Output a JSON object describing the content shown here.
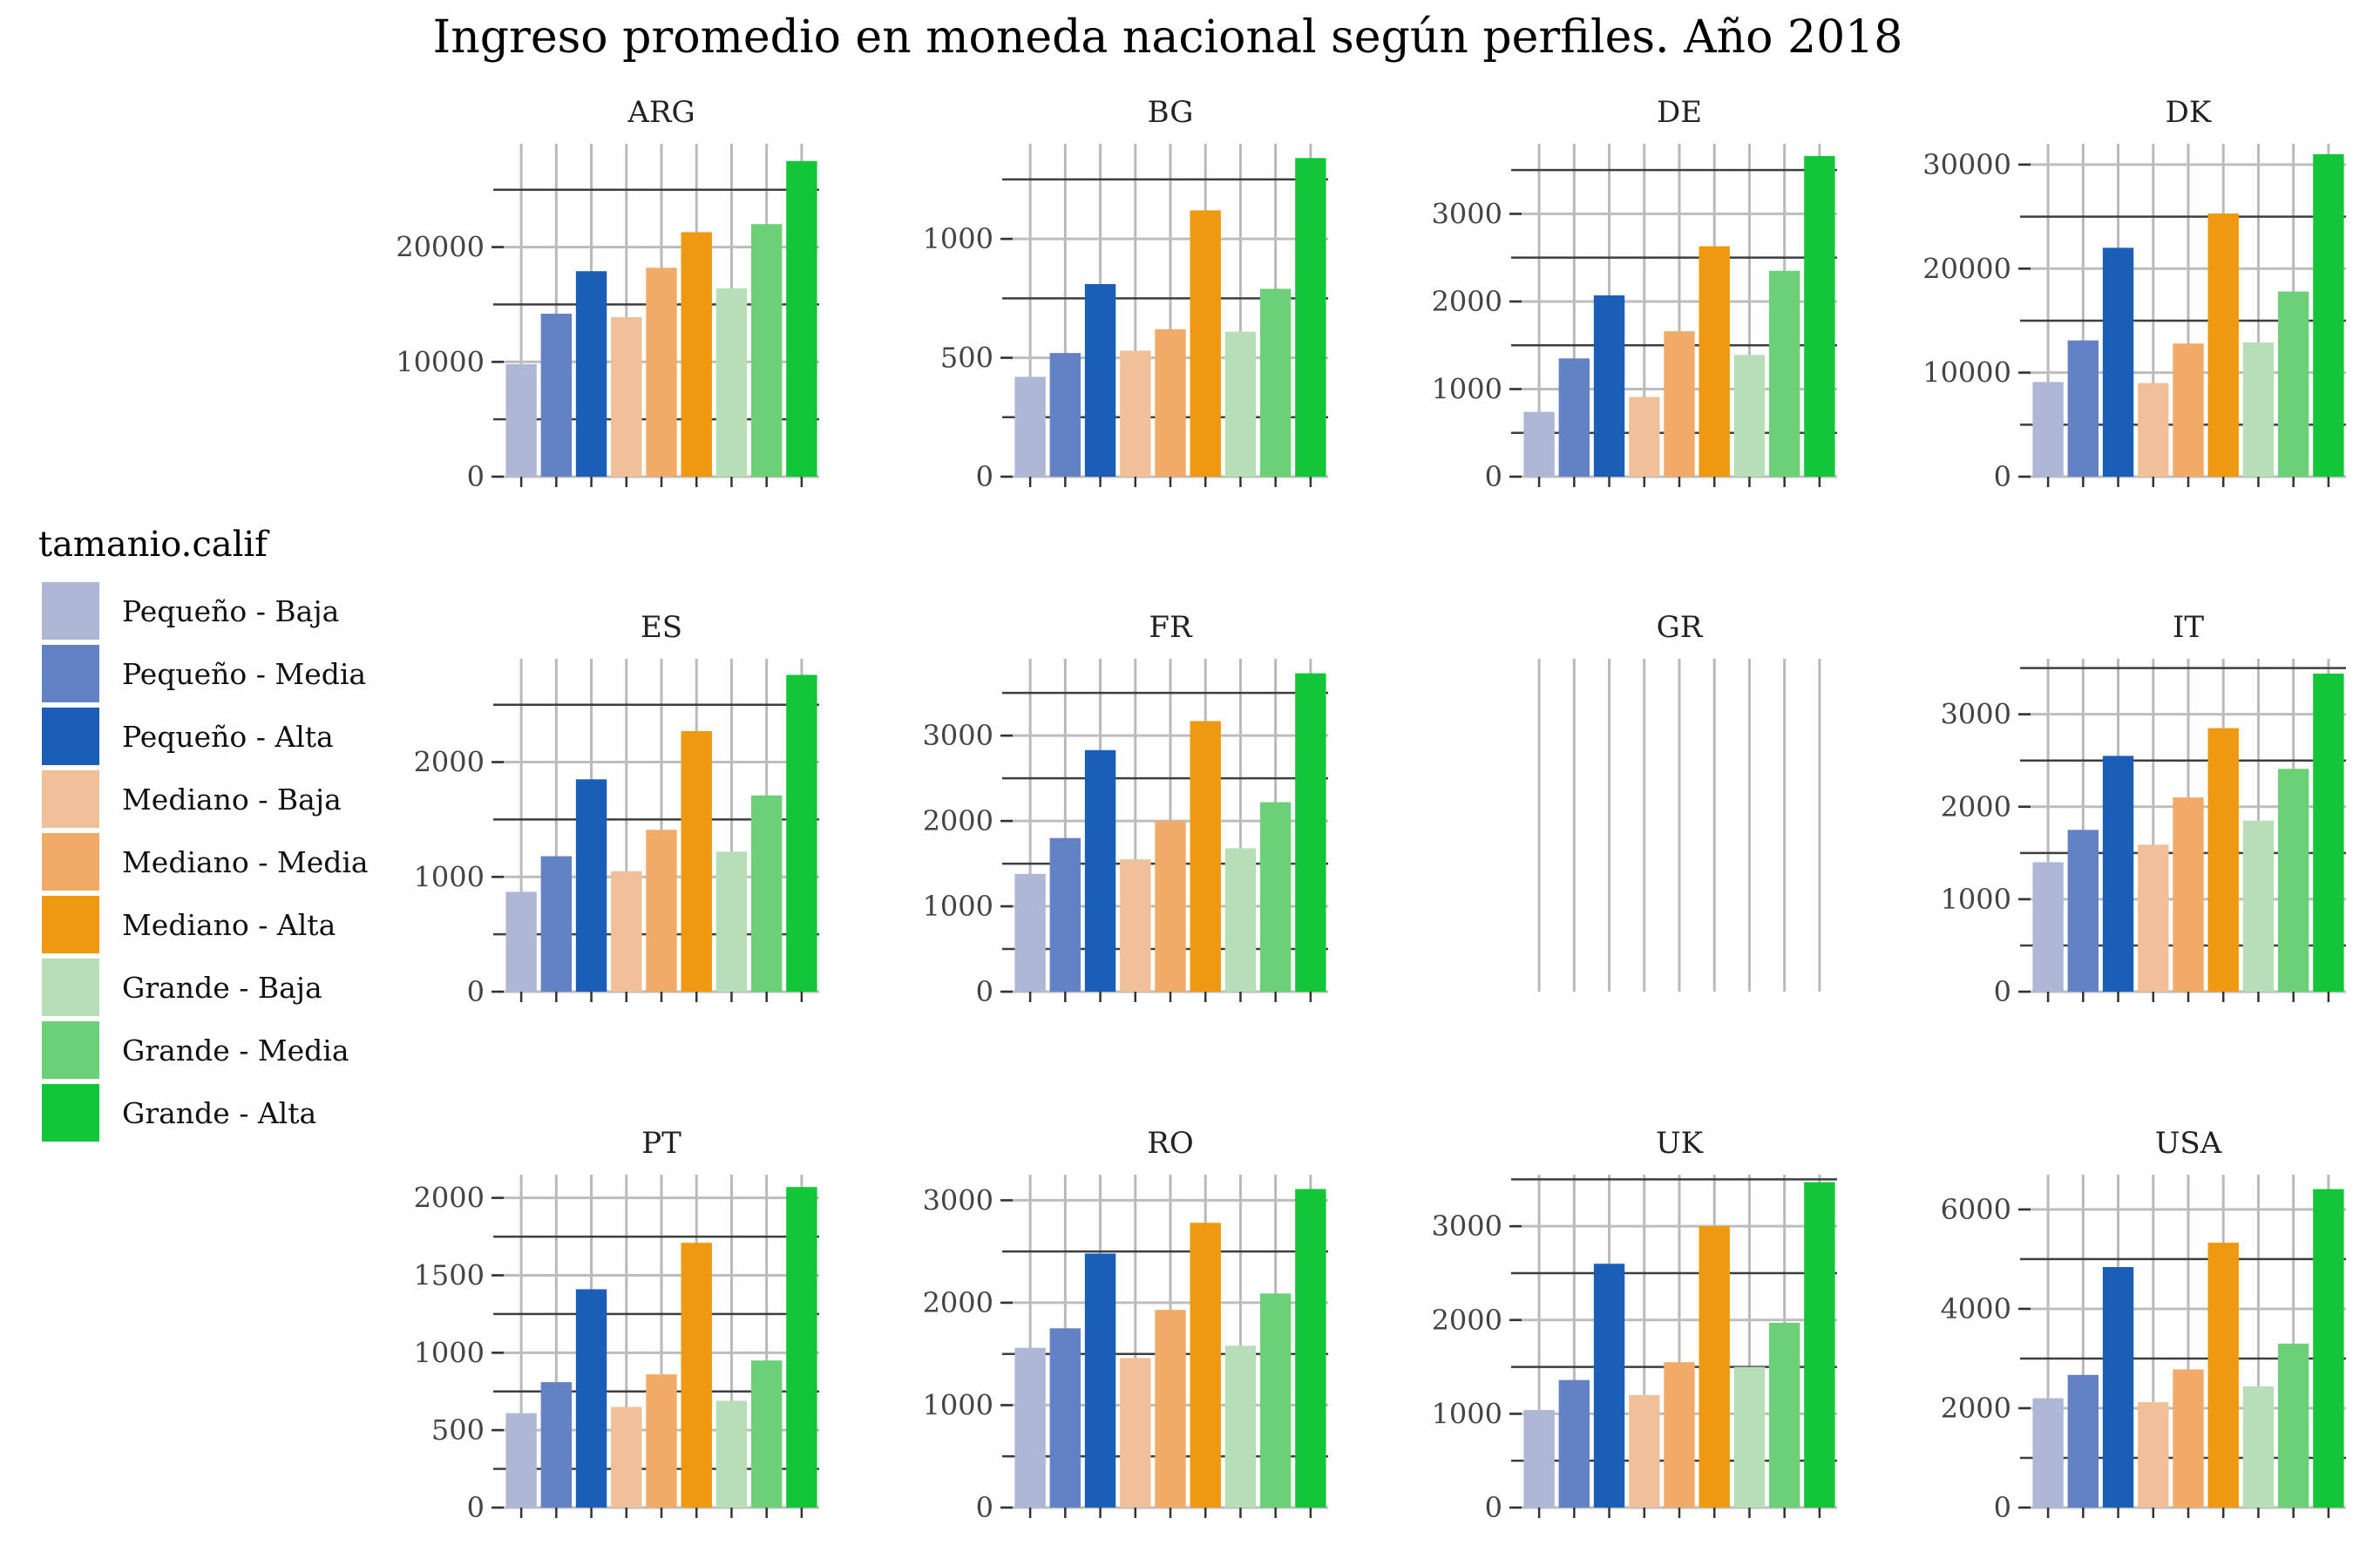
{
  "chart_data": {
    "type": "bar",
    "title": "Ingreso promedio en moneda nacional según perfiles. Año 2018",
    "xlabel": "",
    "ylabel": "",
    "grid": true,
    "legend": {
      "title": "tamanio.calif",
      "position": "left",
      "items": [
        {
          "label": "Pequeño - Baja",
          "color": "#AEB7D6"
        },
        {
          "label": "Pequeño - Media",
          "color": "#6481C3"
        },
        {
          "label": "Pequeño - Alta",
          "color": "#1A5EB9"
        },
        {
          "label": "Mediano - Baja",
          "color": "#F2C098"
        },
        {
          "label": "Mediano - Media",
          "color": "#F1AA67"
        },
        {
          "label": "Mediano - Alta",
          "color": "#EE990F"
        },
        {
          "label": "Grande - Baja",
          "color": "#B6DEB7"
        },
        {
          "label": "Grande - Media",
          "color": "#6BD076"
        },
        {
          "label": "Grande - Alta",
          "color": "#12C63A"
        }
      ]
    },
    "categories": [
      "Pequeño - Baja",
      "Pequeño - Media",
      "Pequeño - Alta",
      "Mediano - Baja",
      "Mediano - Media",
      "Mediano - Alta",
      "Grande - Baja",
      "Grande - Media",
      "Grande - Alta"
    ],
    "panels": [
      {
        "name": "ARG",
        "ylim": [
          0,
          29000
        ],
        "ticks": [
          0,
          10000,
          20000
        ],
        "tick_labels": [
          "0",
          "10000",
          "20000"
        ],
        "values": [
          9800,
          14200,
          17900,
          13900,
          18200,
          21300,
          16400,
          22000,
          27500
        ]
      },
      {
        "name": "BG",
        "ylim": [
          0,
          1400
        ],
        "ticks": [
          0,
          500,
          1000
        ],
        "tick_labels": [
          "0",
          "500",
          "1000"
        ],
        "values": [
          420,
          520,
          810,
          530,
          620,
          1120,
          610,
          790,
          1340
        ]
      },
      {
        "name": "DE",
        "ylim": [
          0,
          3800
        ],
        "ticks": [
          0,
          1000,
          2000,
          3000
        ],
        "tick_labels": [
          "0",
          "1000",
          "2000",
          "3000"
        ],
        "values": [
          740,
          1350,
          2070,
          910,
          1660,
          2630,
          1390,
          2350,
          3660
        ]
      },
      {
        "name": "DK",
        "ylim": [
          0,
          32000
        ],
        "ticks": [
          0,
          10000,
          20000,
          30000
        ],
        "tick_labels": [
          "0",
          "10000",
          "20000",
          "30000"
        ],
        "values": [
          9100,
          13100,
          22000,
          9000,
          12800,
          25300,
          12900,
          17800,
          31000
        ]
      },
      {
        "name": "ES",
        "ylim": [
          0,
          2900
        ],
        "ticks": [
          0,
          1000,
          2000
        ],
        "tick_labels": [
          "0",
          "1000",
          "2000"
        ],
        "values": [
          870,
          1180,
          1850,
          1050,
          1410,
          2270,
          1220,
          1710,
          2760
        ]
      },
      {
        "name": "FR",
        "ylim": [
          0,
          3900
        ],
        "ticks": [
          0,
          1000,
          2000,
          3000
        ],
        "tick_labels": [
          "0",
          "1000",
          "2000",
          "3000"
        ],
        "values": [
          1380,
          1800,
          2830,
          1550,
          2000,
          3170,
          1680,
          2220,
          3730
        ]
      },
      {
        "name": "GR",
        "ylim": [
          0,
          1
        ],
        "ticks": [],
        "tick_labels": [],
        "values": [
          null,
          null,
          null,
          null,
          null,
          null,
          null,
          null,
          null
        ]
      },
      {
        "name": "IT",
        "ylim": [
          0,
          3600
        ],
        "ticks": [
          0,
          1000,
          2000,
          3000
        ],
        "tick_labels": [
          "0",
          "1000",
          "2000",
          "3000"
        ],
        "values": [
          1400,
          1750,
          2550,
          1590,
          2100,
          2850,
          1850,
          2410,
          3440
        ]
      },
      {
        "name": "PT",
        "ylim": [
          0,
          2150
        ],
        "ticks": [
          0,
          500,
          1000,
          1500,
          2000
        ],
        "tick_labels": [
          "0",
          "500",
          "1000",
          "1500",
          "2000"
        ],
        "values": [
          610,
          810,
          1410,
          650,
          860,
          1710,
          690,
          950,
          2070
        ]
      },
      {
        "name": "RO",
        "ylim": [
          0,
          3250
        ],
        "ticks": [
          0,
          1000,
          2000,
          3000
        ],
        "tick_labels": [
          "0",
          "1000",
          "2000",
          "3000"
        ],
        "values": [
          1560,
          1750,
          2480,
          1460,
          1930,
          2780,
          1580,
          2090,
          3110
        ]
      },
      {
        "name": "UK",
        "ylim": [
          0,
          3550
        ],
        "ticks": [
          0,
          1000,
          2000,
          3000
        ],
        "tick_labels": [
          "0",
          "1000",
          "2000",
          "3000"
        ],
        "values": [
          1040,
          1360,
          2600,
          1200,
          1550,
          3000,
          1500,
          1970,
          3470
        ]
      },
      {
        "name": "USA",
        "ylim": [
          0,
          6700
        ],
        "ticks": [
          0,
          2000,
          4000,
          6000
        ],
        "tick_labels": [
          "0",
          "2000",
          "4000",
          "6000"
        ],
        "values": [
          2200,
          2670,
          4840,
          2120,
          2780,
          5330,
          2440,
          3300,
          6410
        ]
      }
    ]
  }
}
